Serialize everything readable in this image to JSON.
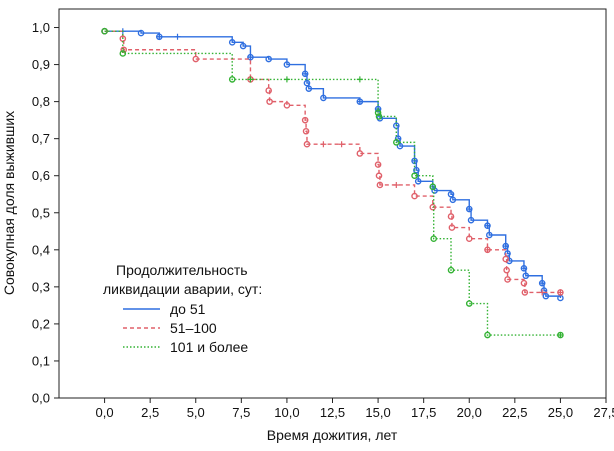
{
  "chart_data": {
    "type": "line",
    "subtype": "kaplan-meier step curves",
    "xlabel": "Время дожития, лет",
    "ylabel": "Совокупная доля выживших",
    "xlim": [
      -2.5,
      27.5
    ],
    "ylim": [
      0.0,
      1.05
    ],
    "x_ticks": [
      0,
      2.5,
      5,
      7.5,
      10,
      12.5,
      15,
      17.5,
      20,
      22.5,
      25,
      27.5
    ],
    "x_tick_labels": [
      "0,0",
      "2,5",
      "5,0",
      "7,5",
      "10,0",
      "12,5",
      "15,0",
      "17,5",
      "20,0",
      "22,5",
      "25,0",
      "27,5"
    ],
    "y_ticks": [
      0.0,
      0.1,
      0.2,
      0.3,
      0.4,
      0.5,
      0.6,
      0.7,
      0.8,
      0.9,
      1.0
    ],
    "y_tick_labels": [
      "0,0",
      "0,1",
      "0,2",
      "0,3",
      "0,4",
      "0,5",
      "0,6",
      "0,7",
      "0,8",
      "0,9",
      "1,0"
    ],
    "grid": false,
    "legend": {
      "title_lines": [
        "Продолжительность",
        "ликвидации аварии, сут:"
      ],
      "placement": "lower-left inside plot"
    },
    "series": [
      {
        "name": "до 51",
        "color": "#2f6fe0",
        "dash": "solid",
        "steps": [
          [
            0,
            0.99
          ],
          [
            2,
            0.985
          ],
          [
            3,
            0.975
          ],
          [
            7,
            0.96
          ],
          [
            7.6,
            0.95
          ],
          [
            8,
            0.92
          ],
          [
            9,
            0.915
          ],
          [
            10,
            0.9
          ],
          [
            11,
            0.875
          ],
          [
            11.1,
            0.85
          ],
          [
            11.2,
            0.835
          ],
          [
            12,
            0.81
          ],
          [
            14,
            0.8
          ],
          [
            15,
            0.78
          ],
          [
            15.1,
            0.755
          ],
          [
            16,
            0.735
          ],
          [
            16.1,
            0.7
          ],
          [
            16.2,
            0.68
          ],
          [
            17,
            0.64
          ],
          [
            17.1,
            0.615
          ],
          [
            17.2,
            0.585
          ],
          [
            18,
            0.57
          ],
          [
            18.1,
            0.56
          ],
          [
            19,
            0.55
          ],
          [
            19.1,
            0.535
          ],
          [
            20,
            0.51
          ],
          [
            20.1,
            0.48
          ],
          [
            21,
            0.465
          ],
          [
            21.1,
            0.44
          ],
          [
            22,
            0.41
          ],
          [
            22.1,
            0.39
          ],
          [
            22.2,
            0.37
          ],
          [
            23,
            0.35
          ],
          [
            23.1,
            0.33
          ],
          [
            24,
            0.31
          ],
          [
            24.1,
            0.29
          ],
          [
            24.2,
            0.275
          ],
          [
            25,
            0.27
          ]
        ],
        "censored": [
          1,
          3,
          4,
          8,
          11,
          14,
          15,
          17,
          18,
          20,
          21,
          22,
          23,
          24
        ],
        "end_x": 25
      },
      {
        "name": "51–100",
        "color": "#e0606a",
        "dash": "dashed",
        "steps": [
          [
            0,
            0.99
          ],
          [
            1,
            0.97
          ],
          [
            1.05,
            0.94
          ],
          [
            5,
            0.915
          ],
          [
            8,
            0.86
          ],
          [
            9,
            0.83
          ],
          [
            9.05,
            0.8
          ],
          [
            10,
            0.79
          ],
          [
            11,
            0.75
          ],
          [
            11.05,
            0.72
          ],
          [
            11.1,
            0.685
          ],
          [
            14,
            0.66
          ],
          [
            15,
            0.63
          ],
          [
            15.05,
            0.6
          ],
          [
            15.1,
            0.575
          ],
          [
            17,
            0.545
          ],
          [
            18,
            0.515
          ],
          [
            19,
            0.49
          ],
          [
            19.05,
            0.46
          ],
          [
            20,
            0.43
          ],
          [
            21,
            0.4
          ],
          [
            22,
            0.375
          ],
          [
            22.05,
            0.345
          ],
          [
            22.1,
            0.32
          ],
          [
            23,
            0.31
          ],
          [
            23.05,
            0.285
          ],
          [
            25,
            0.285
          ]
        ],
        "censored": [
          8,
          12,
          13,
          16,
          21,
          24,
          25
        ],
        "end_x": 25
      },
      {
        "name": "101 и более",
        "color": "#33b233",
        "dash": "dotted",
        "steps": [
          [
            0,
            0.99
          ],
          [
            1,
            0.93
          ],
          [
            7,
            0.86
          ],
          [
            15,
            0.77
          ],
          [
            15.05,
            0.76
          ],
          [
            16,
            0.69
          ],
          [
            17,
            0.6
          ],
          [
            18,
            0.57
          ],
          [
            18.05,
            0.43
          ],
          [
            19,
            0.345
          ],
          [
            20,
            0.255
          ],
          [
            21,
            0.17
          ],
          [
            25,
            0.17
          ]
        ],
        "censored": [
          8,
          10,
          14,
          25
        ],
        "end_x": 25
      }
    ]
  }
}
